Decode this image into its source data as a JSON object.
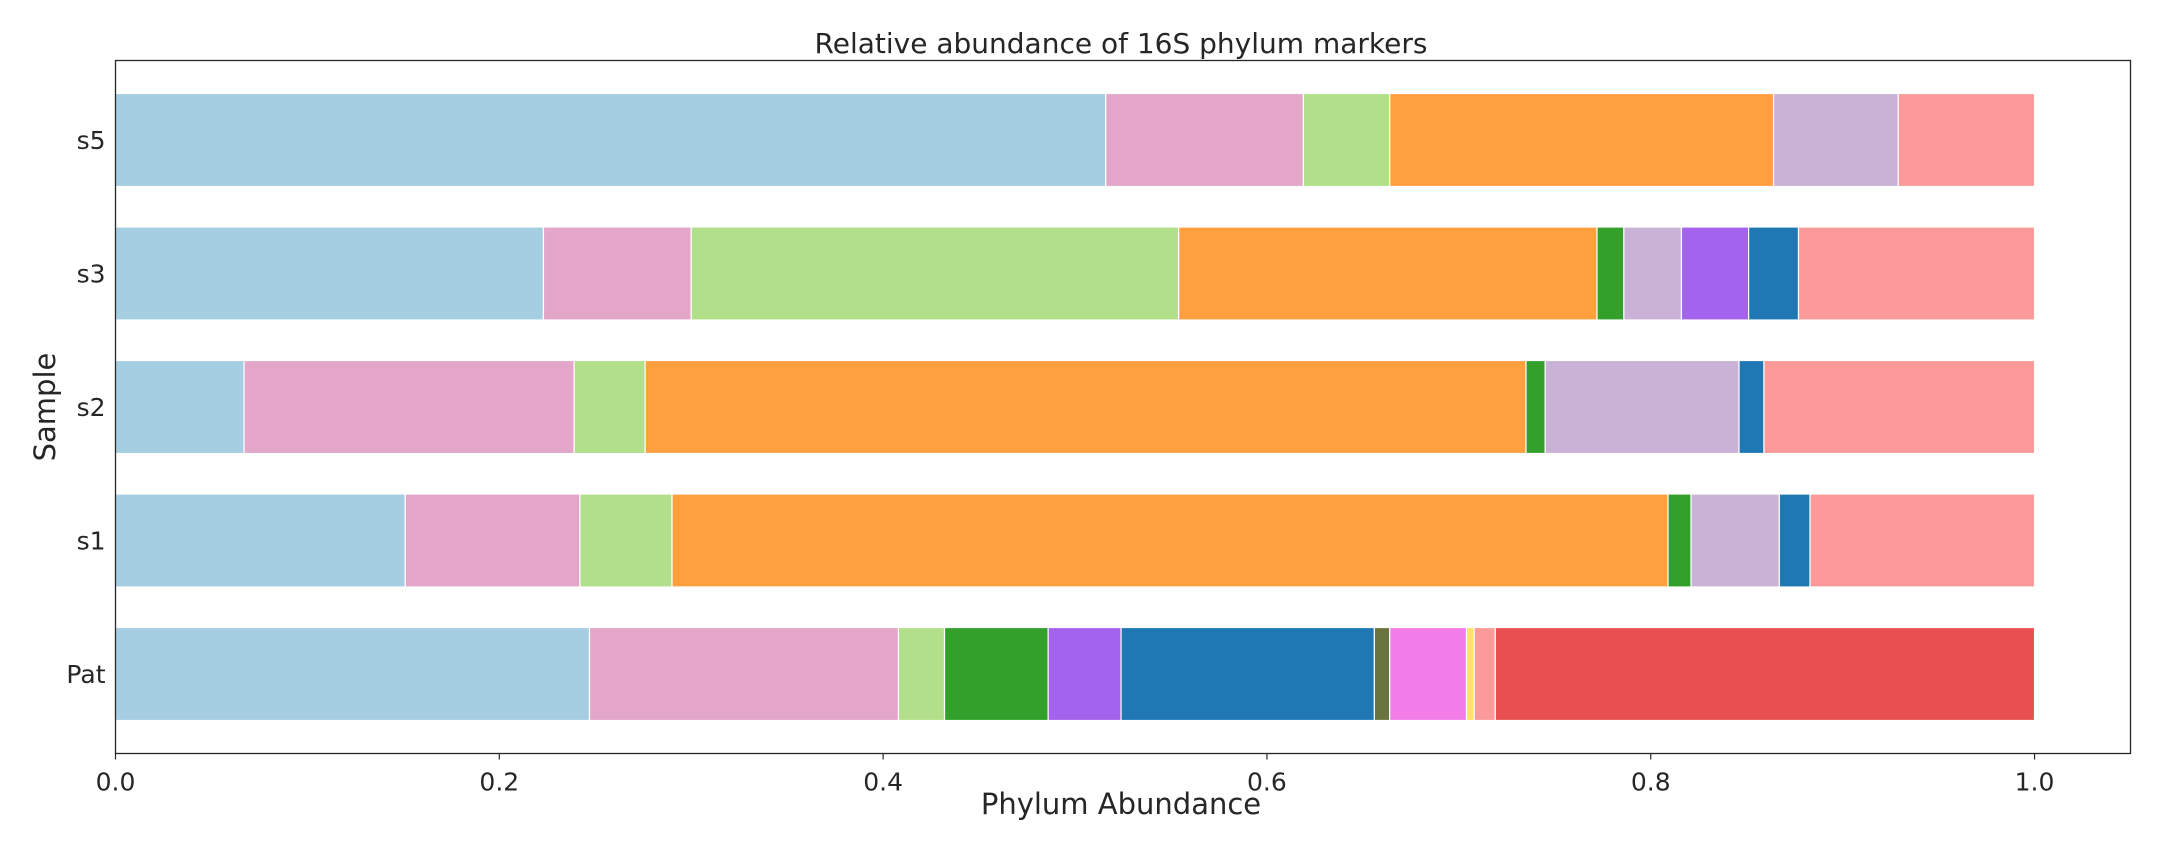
{
  "chart_data": {
    "type": "bar",
    "orientation": "horizontal",
    "stacked": true,
    "title": "Relative abundance of 16S phylum markers",
    "xlabel": "Phylum Abundance",
    "ylabel": "Sample",
    "xlim": [
      0.0,
      1.05
    ],
    "xticks": [
      "0.0",
      "0.2",
      "0.4",
      "0.6",
      "0.8",
      "1.0"
    ],
    "grid": false,
    "categories": [
      "Pat",
      "s1",
      "s2",
      "s3",
      "s5"
    ],
    "series": [
      {
        "color": "#a6cee3",
        "values": [
          0.247,
          0.151,
          0.067,
          0.223,
          0.516
        ]
      },
      {
        "color": "#e3a6c9",
        "values": [
          0.161,
          0.091,
          0.172,
          0.077,
          0.103
        ]
      },
      {
        "color": "#b2df8a",
        "values": [
          0.024,
          0.048,
          0.037,
          0.254,
          0.045
        ]
      },
      {
        "color": "#ff9f3e",
        "values": [
          0.0,
          0.519,
          0.459,
          0.218,
          0.2
        ]
      },
      {
        "color": "#33a02c",
        "values": [
          0.054,
          0.012,
          0.01,
          0.014,
          0.0
        ]
      },
      {
        "color": "#cab2d6",
        "values": [
          0.0,
          0.046,
          0.101,
          0.03,
          0.065
        ]
      },
      {
        "color": "#a463ed",
        "values": [
          0.038,
          0.0,
          0.0,
          0.035,
          0.0
        ]
      },
      {
        "color": "#1f78b4",
        "values": [
          0.132,
          0.016,
          0.013,
          0.026,
          0.0
        ]
      },
      {
        "color": "#6a7440",
        "values": [
          0.008,
          0.0,
          0.0,
          0.0,
          0.0
        ]
      },
      {
        "color": "#f27de8",
        "values": [
          0.04,
          0.0,
          0.0,
          0.0,
          0.0
        ]
      },
      {
        "color": "#ffe36b",
        "values": [
          0.004,
          0.0,
          0.0,
          0.0,
          0.0
        ]
      },
      {
        "color": "#fb9a99",
        "values": [
          0.011,
          0.117,
          0.141,
          0.123,
          0.071
        ]
      },
      {
        "color": "#e85050",
        "values": [
          0.281,
          0.0,
          0.0,
          0.0,
          0.0
        ]
      }
    ]
  }
}
